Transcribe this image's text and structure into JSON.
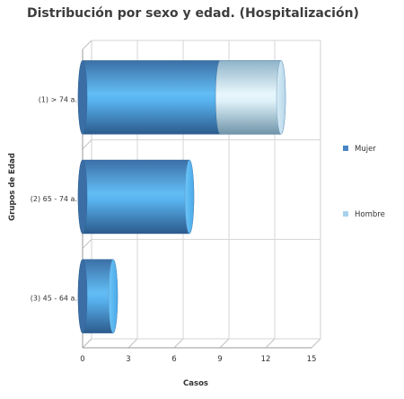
{
  "chart_data": {
    "type": "bar",
    "orientation": "horizontal",
    "stacked": true,
    "style": "3d-cylinder",
    "title": "Distribución por sexo y edad. (Hospitalización)",
    "xlabel": "Casos",
    "ylabel": "Grupos de Edad",
    "categories": [
      "(1) > 74 a.",
      "(2) 65 - 74 a.",
      "(3) 45 - 64 a."
    ],
    "series": [
      {
        "name": "Mujer",
        "values": [
          9,
          7,
          2
        ]
      },
      {
        "name": "Hombre",
        "values": [
          4,
          0,
          0
        ]
      }
    ],
    "xlim": [
      0,
      15
    ],
    "xticks": [
      0,
      3,
      6,
      9,
      12,
      15
    ],
    "grid": true,
    "legend_position": "right",
    "colors": {
      "Mujer": "#4a90d0",
      "Hombre": "#a8cce0"
    }
  }
}
